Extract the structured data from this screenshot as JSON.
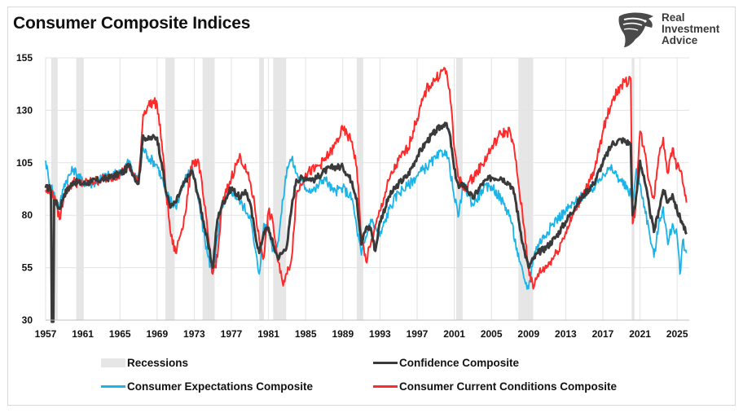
{
  "title": "Consumer Composite Indices",
  "logo": {
    "line1": "Real",
    "line2": "Investment",
    "line3": "Advice",
    "icon": "eagle-head-icon"
  },
  "colors": {
    "confidence": "#3a3a3a",
    "expectations": "#1bb4e8",
    "current": "#ff2a2a",
    "recession": "#e6e6e6",
    "grid": "#e3e3e3"
  },
  "legend": {
    "recessions": "Recessions",
    "confidence": "Confidence Composite",
    "expectations": "Consumer Expectations Composite",
    "current": "Consumer Current Conditions Composite"
  },
  "chart_data": {
    "type": "line",
    "title": "Consumer Composite Indices",
    "xlim": [
      1957,
      2026.3
    ],
    "ylim": [
      30,
      155
    ],
    "yticks": [
      30,
      55,
      80,
      105,
      130,
      155
    ],
    "xticks": [
      1957,
      1961,
      1965,
      1969,
      1973,
      1977,
      1981,
      1985,
      1989,
      1993,
      1997,
      2001,
      2005,
      2009,
      2013,
      2017,
      2021,
      2025
    ],
    "grid": true,
    "legend_position": "bottom",
    "recessions": [
      [
        1957.6,
        1958.3
      ],
      [
        1960.3,
        1961.1
      ],
      [
        1969.9,
        1970.9
      ],
      [
        1973.9,
        1975.2
      ],
      [
        1980.0,
        1980.5
      ],
      [
        1981.5,
        1982.9
      ],
      [
        1990.5,
        1991.2
      ],
      [
        2001.2,
        2001.9
      ],
      [
        2007.9,
        2009.5
      ],
      [
        2020.1,
        2020.4
      ]
    ],
    "series": [
      {
        "name": "Confidence Composite",
        "x": [
          1957.0,
          1957.5,
          1958.0,
          1958.5,
          1959.0,
          1960.0,
          1961.0,
          1962.0,
          1963.0,
          1964.0,
          1965.0,
          1965.5,
          1966.0,
          1966.5,
          1967.0,
          1967.5,
          1968.0,
          1968.5,
          1969.0,
          1969.5,
          1970.0,
          1970.5,
          1971.0,
          1972.0,
          1972.8,
          1973.5,
          1974.0,
          1974.5,
          1975.0,
          1975.5,
          1976.0,
          1977.0,
          1978.0,
          1978.5,
          1979.0,
          1979.5,
          1980.0,
          1980.5,
          1981.0,
          1981.5,
          1982.0,
          1982.5,
          1983.0,
          1983.5,
          1984.0,
          1985.0,
          1986.0,
          1987.0,
          1988.0,
          1989.0,
          1990.0,
          1990.5,
          1991.0,
          1991.5,
          1992.0,
          1992.5,
          1993.0,
          1994.0,
          1995.0,
          1996.0,
          1997.0,
          1998.0,
          1999.0,
          2000.0,
          2000.5,
          2001.0,
          2001.5,
          2002.0,
          2003.0,
          2004.0,
          2005.0,
          2006.0,
          2007.0,
          2007.5,
          2008.0,
          2008.5,
          2009.0,
          2009.5,
          2010.0,
          2011.0,
          2012.0,
          2013.0,
          2014.0,
          2015.0,
          2016.0,
          2017.0,
          2018.0,
          2019.0,
          2020.0,
          2020.2,
          2020.5,
          2021.0,
          2021.5,
          2022.0,
          2022.5,
          2023.0,
          2023.5,
          2024.0,
          2024.5,
          2025.0,
          2025.5,
          2026.0
        ],
        "values": [
          93,
          93,
          87,
          83,
          90,
          96,
          95,
          96,
          97,
          98,
          100,
          101,
          104,
          99,
          95,
          118,
          116,
          117,
          117,
          105,
          90,
          84,
          86,
          96,
          101,
          88,
          77,
          66,
          55,
          78,
          85,
          93,
          88,
          92,
          86,
          73,
          62,
          72,
          74,
          66,
          60,
          62,
          66,
          84,
          97,
          98,
          97,
          101,
          103,
          103,
          96,
          88,
          66,
          74,
          74,
          63,
          77,
          89,
          95,
          99,
          108,
          115,
          120,
          124,
          119,
          102,
          93,
          95,
          88,
          95,
          98,
          98,
          95,
          90,
          76,
          64,
          55,
          59,
          62,
          65,
          70,
          77,
          84,
          90,
          95,
          105,
          114,
          116,
          114,
          80,
          85,
          106,
          96,
          84,
          72,
          82,
          92,
          86,
          90,
          82,
          77,
          71
        ]
      },
      {
        "name": "Consumer Expectations Composite",
        "x": [
          1957.0,
          1957.3,
          1957.6,
          1958.0,
          1958.5,
          1959.0,
          1960.0,
          1961.0,
          1962.0,
          1963.0,
          1964.0,
          1965.0,
          1966.0,
          1966.5,
          1967.0,
          1967.5,
          1968.0,
          1969.0,
          1969.5,
          1970.0,
          1971.0,
          1972.0,
          1972.8,
          1973.5,
          1974.0,
          1974.5,
          1975.0,
          1976.0,
          1977.0,
          1978.0,
          1979.0,
          1979.5,
          1980.0,
          1980.5,
          1981.0,
          1981.5,
          1982.0,
          1983.0,
          1983.5,
          1984.0,
          1985.0,
          1986.0,
          1987.0,
          1988.0,
          1989.0,
          1990.0,
          1990.5,
          1991.0,
          1992.0,
          1993.0,
          1994.0,
          1995.0,
          1996.0,
          1997.0,
          1998.0,
          1999.0,
          2000.0,
          2000.5,
          2001.0,
          2001.5,
          2002.0,
          2003.0,
          2004.0,
          2005.0,
          2006.0,
          2007.0,
          2008.0,
          2008.5,
          2009.0,
          2009.5,
          2010.0,
          2011.0,
          2012.0,
          2013.0,
          2014.0,
          2015.0,
          2016.0,
          2017.0,
          2018.0,
          2019.0,
          2020.0,
          2020.3,
          2020.6,
          2021.0,
          2021.5,
          2022.0,
          2022.5,
          2023.0,
          2023.5,
          2024.0,
          2024.5,
          2025.0,
          2025.3,
          2025.6,
          2026.0
        ],
        "values": [
          106,
          98,
          94,
          89,
          84,
          95,
          102,
          96,
          95,
          98,
          99,
          100,
          106,
          98,
          97,
          112,
          108,
          104,
          98,
          90,
          84,
          97,
          103,
          86,
          72,
          60,
          52,
          85,
          92,
          86,
          80,
          65,
          52,
          76,
          74,
          63,
          67,
          103,
          107,
          100,
          93,
          92,
          98,
          91,
          93,
          88,
          74,
          61,
          78,
          70,
          83,
          91,
          94,
          99,
          103,
          107,
          111,
          104,
          88,
          80,
          95,
          85,
          92,
          94,
          88,
          80,
          58,
          50,
          45,
          60,
          66,
          72,
          78,
          82,
          86,
          90,
          93,
          100,
          102,
          96,
          90,
          88,
          102,
          95,
          84,
          72,
          60,
          75,
          84,
          66,
          76,
          70,
          52,
          68,
          62
        ]
      },
      {
        "name": "Consumer Current Conditions Composite",
        "x": [
          1957.0,
          1957.5,
          1958.0,
          1958.5,
          1959.0,
          1960.0,
          1961.0,
          1962.0,
          1963.0,
          1964.0,
          1965.0,
          1966.0,
          1966.5,
          1967.0,
          1967.5,
          1968.0,
          1968.5,
          1969.0,
          1969.5,
          1970.0,
          1970.5,
          1971.0,
          1972.0,
          1972.8,
          1973.5,
          1974.0,
          1974.5,
          1975.0,
          1975.5,
          1976.0,
          1977.0,
          1977.5,
          1978.0,
          1979.0,
          1979.5,
          1980.0,
          1980.5,
          1981.0,
          1981.5,
          1982.0,
          1982.5,
          1983.0,
          1983.5,
          1984.0,
          1985.0,
          1986.0,
          1987.0,
          1988.0,
          1989.0,
          1990.0,
          1990.5,
          1991.0,
          1991.5,
          1992.0,
          1993.0,
          1994.0,
          1995.0,
          1996.0,
          1997.0,
          1998.0,
          1999.0,
          2000.0,
          2000.5,
          2001.0,
          2001.5,
          2002.0,
          2003.0,
          2004.0,
          2005.0,
          2006.0,
          2007.0,
          2007.5,
          2008.0,
          2008.5,
          2009.0,
          2009.5,
          2010.0,
          2011.0,
          2012.0,
          2013.0,
          2014.0,
          2015.0,
          2016.0,
          2017.0,
          2018.0,
          2019.0,
          2020.0,
          2020.2,
          2020.5,
          2021.0,
          2021.5,
          2022.0,
          2022.5,
          2023.0,
          2023.5,
          2024.0,
          2024.5,
          2025.0,
          2025.5,
          2026.0
        ],
        "values": [
          92,
          90,
          89,
          78,
          90,
          96,
          95,
          96,
          97,
          98,
          100,
          103,
          100,
          95,
          128,
          132,
          134,
          133,
          115,
          90,
          70,
          62,
          80,
          106,
          105,
          88,
          70,
          52,
          60,
          85,
          98,
          104,
          108,
          96,
          85,
          68,
          60,
          82,
          76,
          58,
          48,
          52,
          60,
          90,
          100,
          102,
          106,
          112,
          121,
          115,
          103,
          70,
          58,
          66,
          82,
          97,
          106,
          112,
          126,
          140,
          145,
          150,
          140,
          112,
          98,
          92,
          98,
          104,
          112,
          119,
          120,
          110,
          92,
          75,
          55,
          45,
          52,
          56,
          62,
          72,
          82,
          92,
          99,
          120,
          135,
          142,
          145,
          76,
          83,
          120,
          110,
          96,
          88,
          108,
          117,
          100,
          112,
          103,
          100,
          86
        ]
      }
    ]
  }
}
